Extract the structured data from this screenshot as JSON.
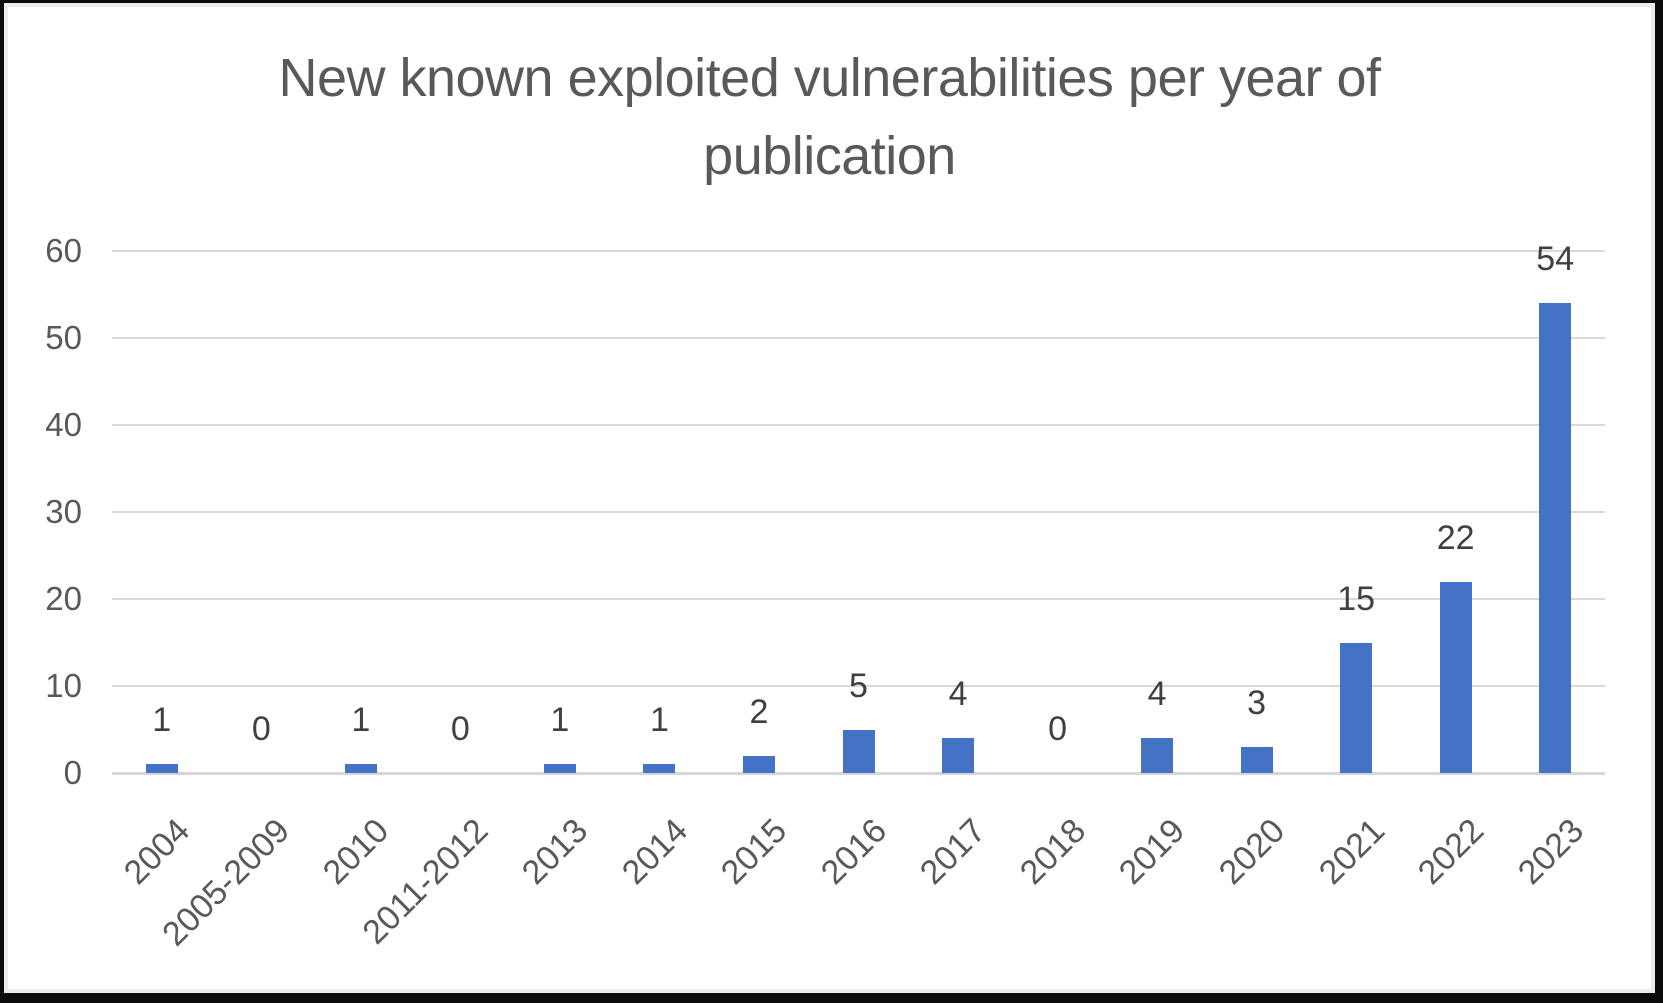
{
  "frame": {
    "background": "#ffffff",
    "border_color": "#0b0b0b",
    "inner_edge_color": "#ebebeb"
  },
  "chart_data": {
    "type": "bar",
    "title": "New known exploited vulnerabilities per year of publication",
    "title_lines": [
      "New known exploited vulnerabilities per year of",
      "publication"
    ],
    "categories": [
      "2004",
      "2005-2009",
      "2010",
      "2011-2012",
      "2013",
      "2014",
      "2015",
      "2016",
      "2017",
      "2018",
      "2019",
      "2020",
      "2021",
      "2022",
      "2023"
    ],
    "values": [
      1,
      0,
      1,
      0,
      1,
      1,
      2,
      5,
      4,
      0,
      4,
      3,
      15,
      22,
      54
    ],
    "data_labels_shown": true,
    "data_label_position": "outside-end",
    "xlabel": "",
    "ylabel": "",
    "ylim": [
      0,
      60
    ],
    "yticks": [
      0,
      10,
      20,
      30,
      40,
      50,
      60
    ],
    "grid": true,
    "legend": "none",
    "x_tick_rotation_deg": 45,
    "colors": {
      "bar": "#4472C4",
      "title": "#595959",
      "tick_labels": "#595959",
      "data_labels": "#404040",
      "gridline": "#D9D9D9",
      "axis_line": "#D6D6D6"
    }
  }
}
